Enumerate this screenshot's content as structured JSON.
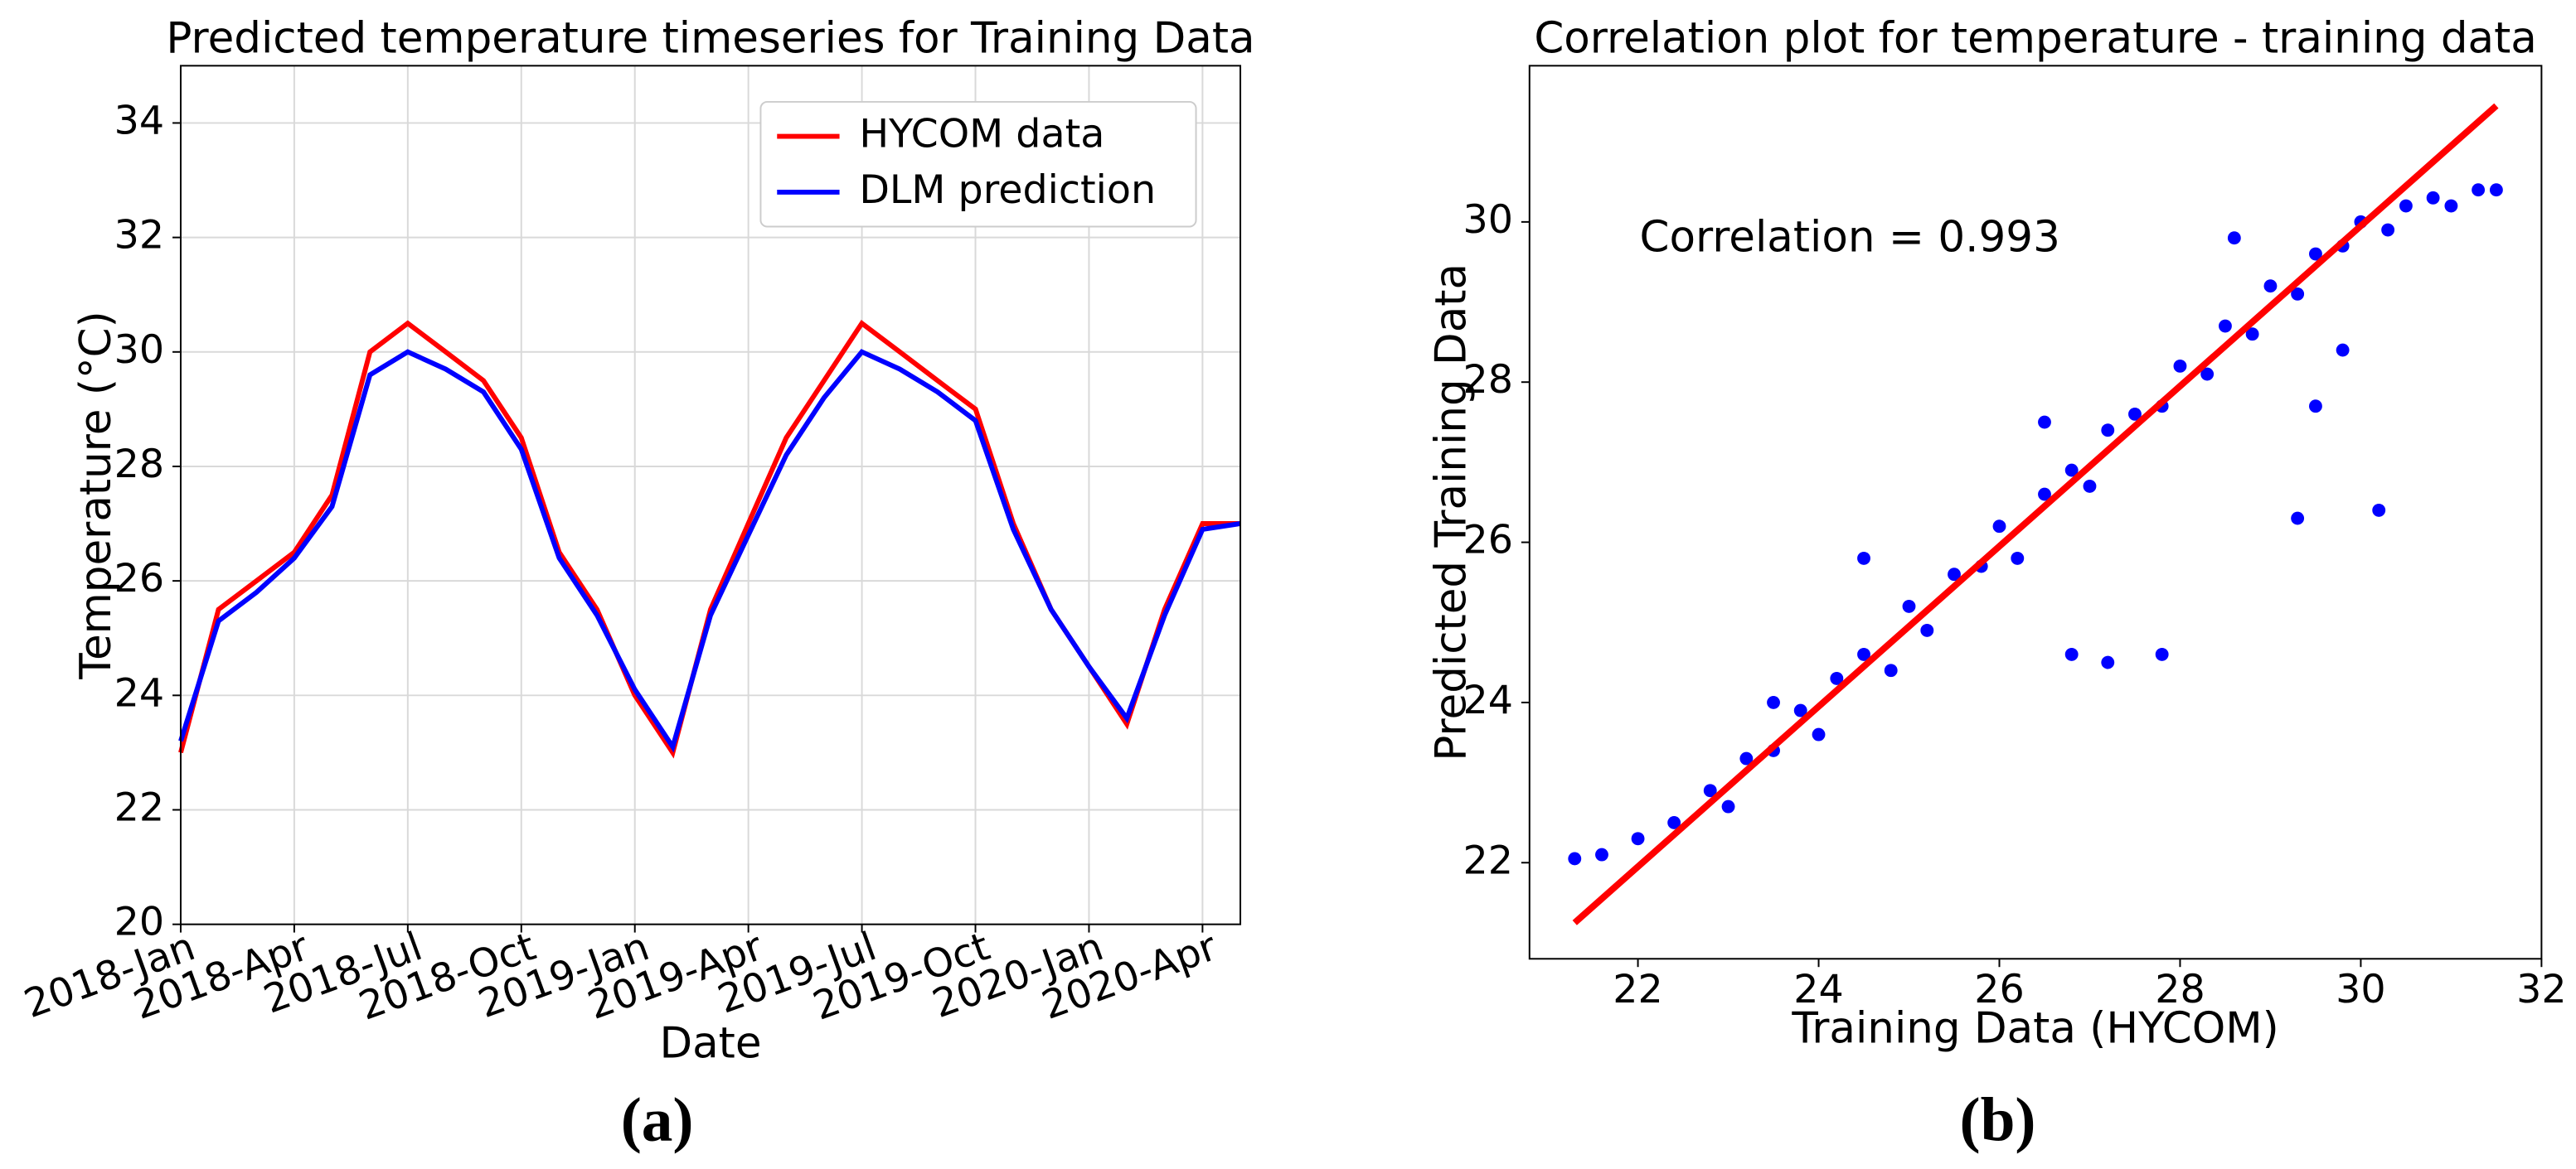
{
  "chart_data": [
    {
      "type": "line",
      "title": "Predicted temperature timeseries for Training Data",
      "x_label": "Date",
      "y_label": "Temperature (°C)",
      "caption": "(a)",
      "x": [
        "2018-01",
        "2018-02",
        "2018-03",
        "2018-04",
        "2018-05",
        "2018-06",
        "2018-07",
        "2018-08",
        "2018-09",
        "2018-10",
        "2018-11",
        "2018-12",
        "2019-01",
        "2019-02",
        "2019-03",
        "2019-04",
        "2019-05",
        "2019-06",
        "2019-07",
        "2019-08",
        "2019-09",
        "2019-10",
        "2019-11",
        "2019-12",
        "2020-01",
        "2020-02",
        "2020-03",
        "2020-04",
        "2020-05"
      ],
      "series": [
        {
          "name": "HYCOM data",
          "color": "#ff0000",
          "values": [
            23,
            25.5,
            26,
            26.5,
            27.5,
            30,
            30.5,
            30,
            29.5,
            28.5,
            26.5,
            25.5,
            24,
            23,
            25.5,
            27,
            28.5,
            29.5,
            30.5,
            30,
            29.5,
            29,
            27,
            25.5,
            24.5,
            23.5,
            25.5,
            27,
            27
          ]
        },
        {
          "name": "DLM prediction",
          "color": "#0000ff",
          "values": [
            23.2,
            25.3,
            25.8,
            26.4,
            27.3,
            29.6,
            30,
            29.7,
            29.3,
            28.3,
            26.4,
            25.4,
            24.1,
            23.1,
            25.4,
            26.8,
            28.2,
            29.2,
            30,
            29.7,
            29.3,
            28.8,
            26.9,
            25.5,
            24.5,
            23.6,
            25.4,
            26.9,
            27
          ]
        }
      ],
      "xlim": [
        "2018-01",
        "2020-05"
      ],
      "xticks": [
        {
          "value": "2018-01",
          "label": "2018-Jan"
        },
        {
          "value": "2018-04",
          "label": "2018-Apr"
        },
        {
          "value": "2018-07",
          "label": "2018-Jul"
        },
        {
          "value": "2018-10",
          "label": "2018-Oct"
        },
        {
          "value": "2019-01",
          "label": "2019-Jan"
        },
        {
          "value": "2019-04",
          "label": "2019-Apr"
        },
        {
          "value": "2019-07",
          "label": "2019-Jul"
        },
        {
          "value": "2019-10",
          "label": "2019-Oct"
        },
        {
          "value": "2020-01",
          "label": "2020-Jan"
        },
        {
          "value": "2020-04",
          "label": "2020-Apr"
        }
      ],
      "ylim": [
        20,
        35
      ],
      "yticks": [
        20,
        22,
        24,
        26,
        28,
        30,
        32,
        34
      ],
      "grid": true,
      "legend": "upper right"
    },
    {
      "type": "scatter",
      "title": "Correlation plot for temperature - training data",
      "x_label": "Training Data (HYCOM)",
      "y_label": "Predicted Training Data",
      "caption": "(b)",
      "annotation": "Correlation = 0.993",
      "points": {
        "color": "#0000ff",
        "x": [
          21.3,
          21.6,
          22.0,
          22.4,
          22.8,
          23.0,
          23.2,
          23.5,
          23.8,
          24.0,
          24.2,
          24.5,
          24.8,
          25.0,
          25.2,
          25.5,
          25.8,
          26.0,
          26.2,
          26.5,
          26.8,
          27.0,
          27.2,
          27.5,
          27.8,
          28.0,
          28.3,
          28.5,
          28.8,
          29.0,
          29.3,
          29.5,
          29.8,
          30.0,
          30.3,
          30.5,
          30.8,
          31.0,
          31.3,
          31.5,
          26.8,
          27.2,
          27.8,
          29.3,
          30.2,
          29.5,
          29.8,
          26.5,
          24.5,
          23.5,
          28.6
        ],
        "values": [
          22.05,
          22.1,
          22.3,
          22.5,
          22.9,
          22.7,
          23.3,
          23.4,
          23.9,
          23.6,
          24.3,
          24.6,
          24.4,
          25.2,
          24.9,
          25.6,
          25.7,
          26.2,
          25.8,
          26.6,
          26.9,
          26.7,
          27.4,
          27.6,
          27.7,
          28.2,
          28.1,
          28.7,
          28.6,
          29.2,
          29.1,
          29.6,
          29.7,
          30.0,
          29.9,
          30.2,
          30.3,
          30.2,
          30.4,
          30.4,
          24.6,
          24.5,
          24.6,
          26.3,
          26.4,
          27.7,
          28.4,
          27.5,
          25.8,
          24.0,
          29.8
        ]
      },
      "fit": {
        "color": "#ff0000",
        "x": [
          21.3,
          31.5
        ],
        "values": [
          21.25,
          31.45
        ]
      },
      "xlim": [
        20.8,
        32
      ],
      "xticks": [
        22,
        24,
        26,
        28,
        30,
        32
      ],
      "ylim": [
        20.8,
        31.95
      ],
      "yticks": [
        22,
        24,
        26,
        28,
        30
      ],
      "grid": false
    }
  ]
}
